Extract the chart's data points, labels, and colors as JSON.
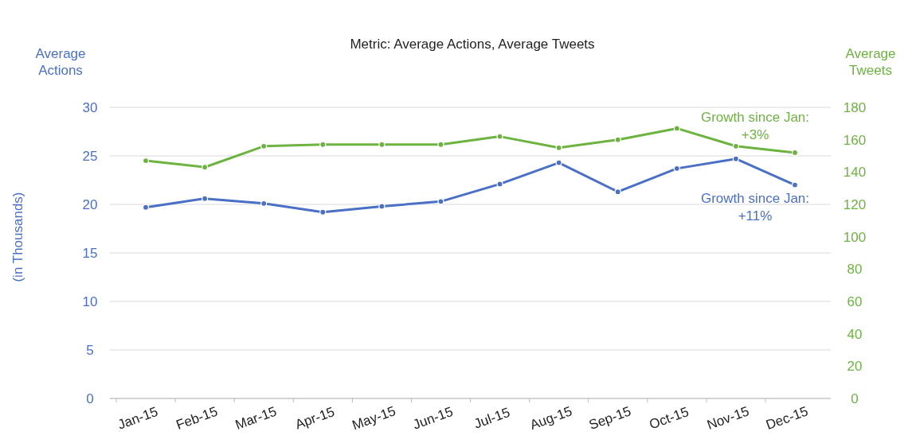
{
  "chart_data": {
    "type": "line",
    "title": "Metric: Average Actions, Average Tweets",
    "ylabel": "Average Actions",
    "y2label": "Average Tweets",
    "annotations": [
      "(in Thousands)",
      "Growth since Jan:\n+3%",
      "Growth since Jan:\n+11%"
    ],
    "categories": [
      "Jan-15",
      "Feb-15",
      "Mar-15",
      "Apr-15",
      "May-15",
      "Jun-15",
      "Jul-15",
      "Aug-15",
      "Sep-15",
      "Oct-15",
      "Nov-15",
      "Dec-15"
    ],
    "series": [
      {
        "color": "#4a6fc7",
        "values": [
          19.7,
          20.6,
          20.1,
          19.2,
          19.8,
          20.3,
          22.1,
          24.3,
          21.3,
          23.7,
          24.7,
          22.0
        ]
      },
      {
        "color": "#6db33f",
        "axis": "y2",
        "values": [
          147,
          143,
          156,
          157,
          157,
          157,
          162,
          155,
          160,
          167,
          156,
          152
        ]
      }
    ],
    "ylim": [
      0,
      30
    ],
    "yticks": [
      0,
      5,
      10,
      15,
      20,
      25,
      30
    ],
    "y2lim": [
      0,
      180
    ],
    "y2ticks": [
      0,
      20,
      40,
      60,
      80,
      100,
      120,
      140,
      160,
      180
    ],
    "grid": "y",
    "marker": "circle",
    "line_style": "solid"
  }
}
